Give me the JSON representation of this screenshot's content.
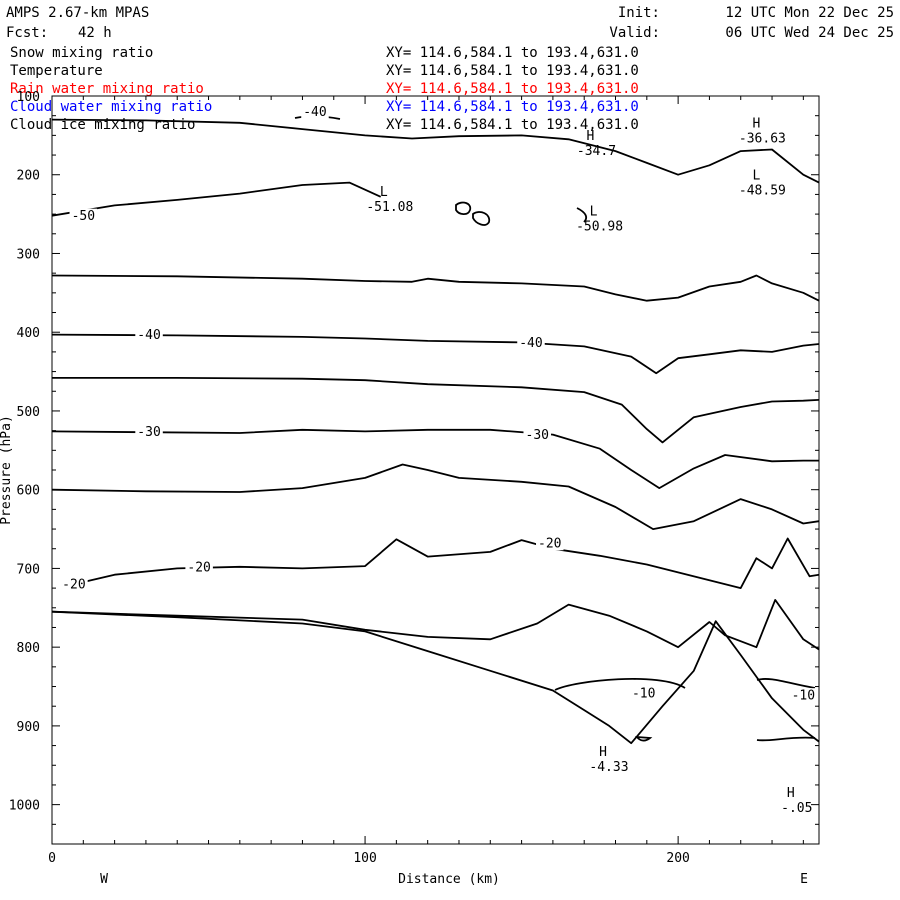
{
  "chart_data": {
    "type": "line",
    "title": "AMPS 2.67-km MPAS",
    "forecast_label": "Fcst:",
    "forecast_value": "42 h",
    "init_label": "Init:",
    "init_value": "12 UTC Mon 22 Dec 25",
    "valid_label": "Valid:",
    "valid_value": "06 UTC Wed 24 Dec 25",
    "fields": [
      {
        "name": "Snow mixing ratio",
        "xy": "XY= 114.6,584.1 to 193.4,631.0",
        "color": "#000000"
      },
      {
        "name": "Temperature",
        "xy": "XY= 114.6,584.1 to 193.4,631.0",
        "color": "#000000"
      },
      {
        "name": "Rain water mixing ratio",
        "xy": "XY= 114.6,584.1 to 193.4,631.0",
        "color": "#ff0000"
      },
      {
        "name": "Cloud water mixing ratio",
        "xy": "XY= 114.6,584.1 to 193.4,631.0",
        "color": "#0000ff"
      },
      {
        "name": "Cloud ice mixing ratio",
        "xy": "XY= 114.6,584.1 to 193.4,631.0",
        "color": "#000000"
      }
    ],
    "xlabel": "Distance (km)",
    "ylabel": "Pressure (hPa)",
    "xlim": [
      0,
      245
    ],
    "ylim": [
      100,
      1050
    ],
    "xticks": [
      0,
      100,
      200
    ],
    "yticks": [
      100,
      200,
      300,
      400,
      500,
      600,
      700,
      800,
      900,
      1000
    ],
    "west_label": "W",
    "east_label": "E",
    "contour_labels": [
      {
        "text": "-40",
        "x": 84,
        "p": 120
      },
      {
        "text": "-50",
        "x": 10,
        "p": 252
      },
      {
        "text": "-40",
        "x": 31,
        "p": 403
      },
      {
        "text": "-40",
        "x": 153,
        "p": 413
      },
      {
        "text": "-30",
        "x": 31,
        "p": 526
      },
      {
        "text": "-30",
        "x": 155,
        "p": 530
      },
      {
        "text": "-20",
        "x": 47,
        "p": 698
      },
      {
        "text": "-20",
        "x": 7,
        "p": 720
      },
      {
        "text": "-20",
        "x": 159,
        "p": 668
      },
      {
        "text": "-10",
        "x": 189,
        "p": 858
      },
      {
        "text": "-10",
        "x": 240,
        "p": 861
      }
    ],
    "extrema": [
      {
        "type": "L",
        "value": "-51.08",
        "x": 106,
        "p": 227
      },
      {
        "type": "L",
        "value": "-50.98",
        "x": 173,
        "p": 252
      },
      {
        "type": "H",
        "value": "-34.7",
        "x": 172,
        "p": 156
      },
      {
        "type": "H",
        "value": "-36.63",
        "x": 225,
        "p": 140
      },
      {
        "type": "L",
        "value": "-48.59",
        "x": 225,
        "p": 206
      },
      {
        "type": "H",
        "value": "-4.33",
        "x": 176,
        "p": 938
      },
      {
        "type": "H",
        "value": "-.05",
        "x": 236,
        "p": 990
      }
    ],
    "isotherms": [
      {
        "level": "-40",
        "points": [
          [
            0,
            130
          ],
          [
            30,
            131
          ],
          [
            60,
            134
          ],
          [
            80,
            142
          ],
          [
            100,
            150
          ],
          [
            115,
            154
          ],
          [
            130,
            151
          ],
          [
            150,
            150
          ],
          [
            165,
            155
          ],
          [
            180,
            170
          ],
          [
            190,
            185
          ],
          [
            200,
            200
          ],
          [
            210,
            188
          ],
          [
            220,
            170
          ],
          [
            230,
            168
          ],
          [
            240,
            200
          ],
          [
            245,
            210
          ]
        ]
      },
      {
        "level": "-50",
        "points": [
          [
            0,
            252
          ],
          [
            20,
            239
          ],
          [
            40,
            232
          ],
          [
            60,
            224
          ],
          [
            80,
            213
          ],
          [
            95,
            210
          ],
          [
            105,
            228
          ]
        ]
      },
      {
        "level": "-40",
        "points": [
          [
            0,
            328
          ],
          [
            40,
            329
          ],
          [
            80,
            332
          ],
          [
            100,
            335
          ],
          [
            115,
            336
          ],
          [
            120,
            332
          ],
          [
            130,
            336
          ],
          [
            150,
            338
          ],
          [
            170,
            342
          ],
          [
            180,
            352
          ],
          [
            190,
            360
          ],
          [
            200,
            356
          ],
          [
            210,
            342
          ],
          [
            220,
            336
          ],
          [
            225,
            328
          ],
          [
            230,
            338
          ],
          [
            240,
            350
          ],
          [
            245,
            360
          ]
        ]
      },
      {
        "level": "-40",
        "points": [
          [
            0,
            403
          ],
          [
            40,
            404
          ],
          [
            80,
            406
          ],
          [
            100,
            408
          ],
          [
            120,
            411
          ],
          [
            150,
            413
          ],
          [
            170,
            418
          ],
          [
            185,
            431
          ],
          [
            193,
            452
          ],
          [
            200,
            433
          ],
          [
            210,
            428
          ],
          [
            220,
            423
          ],
          [
            230,
            425
          ],
          [
            240,
            417
          ],
          [
            245,
            415
          ]
        ]
      },
      {
        "level": "-40",
        "points": [
          [
            0,
            458
          ],
          [
            40,
            458
          ],
          [
            80,
            459
          ],
          [
            100,
            461
          ],
          [
            120,
            466
          ],
          [
            150,
            470
          ],
          [
            170,
            476
          ],
          [
            182,
            492
          ],
          [
            190,
            523
          ],
          [
            195,
            540
          ],
          [
            205,
            508
          ],
          [
            220,
            495
          ],
          [
            230,
            488
          ],
          [
            240,
            487
          ],
          [
            245,
            486
          ]
        ]
      },
      {
        "level": "-30",
        "points": [
          [
            0,
            526
          ],
          [
            30,
            527
          ],
          [
            60,
            528
          ],
          [
            80,
            524
          ],
          [
            100,
            526
          ],
          [
            120,
            524
          ],
          [
            140,
            524
          ],
          [
            160,
            530
          ],
          [
            175,
            548
          ],
          [
            185,
            575
          ],
          [
            194,
            598
          ],
          [
            205,
            573
          ],
          [
            215,
            556
          ],
          [
            230,
            564
          ],
          [
            240,
            563
          ],
          [
            245,
            563
          ]
        ]
      },
      {
        "level": "-30",
        "points": [
          [
            0,
            600
          ],
          [
            30,
            602
          ],
          [
            60,
            603
          ],
          [
            80,
            598
          ],
          [
            100,
            585
          ],
          [
            112,
            568
          ],
          [
            120,
            575
          ],
          [
            130,
            585
          ],
          [
            150,
            590
          ],
          [
            165,
            596
          ],
          [
            180,
            622
          ],
          [
            192,
            650
          ],
          [
            205,
            640
          ],
          [
            220,
            612
          ],
          [
            230,
            625
          ],
          [
            240,
            643
          ],
          [
            245,
            640
          ]
        ]
      },
      {
        "level": "-20",
        "points": [
          [
            7,
            720
          ],
          [
            20,
            708
          ],
          [
            40,
            700
          ],
          [
            60,
            698
          ],
          [
            80,
            700
          ],
          [
            100,
            697
          ],
          [
            110,
            663
          ],
          [
            120,
            685
          ],
          [
            140,
            679
          ],
          [
            150,
            664
          ],
          [
            160,
            675
          ],
          [
            175,
            684
          ],
          [
            190,
            695
          ],
          [
            210,
            715
          ],
          [
            220,
            725
          ],
          [
            225,
            687
          ],
          [
            230,
            700
          ],
          [
            235,
            662
          ],
          [
            242,
            710
          ],
          [
            245,
            708
          ]
        ]
      },
      {
        "level": "-10",
        "points": [
          [
            0,
            755
          ],
          [
            40,
            760
          ],
          [
            80,
            765
          ],
          [
            100,
            778
          ],
          [
            120,
            787
          ],
          [
            140,
            790
          ],
          [
            155,
            770
          ],
          [
            165,
            746
          ],
          [
            178,
            760
          ],
          [
            190,
            780
          ],
          [
            200,
            800
          ],
          [
            210,
            768
          ],
          [
            215,
            785
          ],
          [
            225,
            800
          ],
          [
            231,
            740
          ],
          [
            240,
            790
          ],
          [
            245,
            803
          ]
        ]
      },
      {
        "level": "-10",
        "points": [
          [
            0,
            755
          ],
          [
            40,
            762
          ],
          [
            80,
            770
          ],
          [
            100,
            780
          ],
          [
            120,
            805
          ],
          [
            140,
            830
          ],
          [
            160,
            855
          ],
          [
            170,
            880
          ],
          [
            178,
            900
          ],
          [
            185,
            922
          ],
          [
            195,
            875
          ],
          [
            205,
            830
          ],
          [
            212,
            767
          ],
          [
            220,
            810
          ],
          [
            230,
            865
          ],
          [
            240,
            905
          ],
          [
            245,
            920
          ]
        ]
      }
    ]
  }
}
